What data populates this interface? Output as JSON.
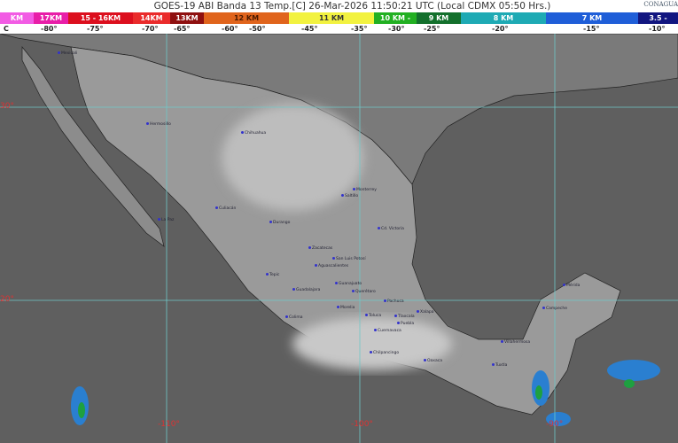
{
  "header": {
    "title": "GOES-19 ABI Banda 13 Temp.[C] 26-Mar-2026 11:50:21 UTC (Local CDMX  05:50 Hrs.)",
    "logo": "CONAGUA"
  },
  "colorbar": {
    "segments": [
      {
        "label": "KM",
        "color": "#f25ce4",
        "text": "#fff"
      },
      {
        "label": "17KM",
        "color": "#e81ea8",
        "text": "#fff"
      },
      {
        "label": "15 - 16KM",
        "color": "#dc0f1e",
        "text": "#fff"
      },
      {
        "label": "14KM",
        "color": "#ea2b2b",
        "text": "#fff"
      },
      {
        "label": "13KM",
        "color": "#8f1010",
        "text": "#fff"
      },
      {
        "label": "12 KM",
        "color": "#e0641c",
        "text": "#4a1a00"
      },
      {
        "label": "11 KM",
        "color": "#f2f240",
        "text": "#333"
      },
      {
        "label": "10 KM -",
        "color": "#22b022",
        "text": "#fff"
      },
      {
        "label": "9 KM",
        "color": "#13702c",
        "text": "#fff"
      },
      {
        "label": "8 KM",
        "color": "#1eaab4",
        "text": "#fff"
      },
      {
        "label": "7 KM",
        "color": "#1f5ed8",
        "text": "#fff"
      },
      {
        "label": "3.5 -",
        "color": "#121680",
        "text": "#fff"
      }
    ],
    "temps": [
      "C",
      "-80°",
      "-75°",
      "-70°",
      "-65°",
      "-60°",
      "-50°",
      "-45°",
      "-35°",
      "-30°",
      "-25°",
      "-20°",
      "-15°",
      "-10°"
    ]
  },
  "grid": {
    "lat": [
      "30°",
      "20°"
    ],
    "lon": [
      "-110°",
      "-100°",
      "-90°"
    ],
    "color": "#6fc8c8"
  },
  "cities": [
    "Mexicali",
    "Hermosillo",
    "Chihuahua",
    "La Paz",
    "Culiacán",
    "Durango",
    "Monterrey",
    "Saltillo",
    "Cd. Victoria",
    "Zacatecas",
    "San Luis Potosí",
    "Aguascalientes",
    "Tepic",
    "Guadalajara",
    "Guanajuato",
    "Querétaro",
    "Morelia",
    "Colima",
    "Toluca",
    "Pachuca",
    "Tlaxcala",
    "Puebla",
    "Cuernavaca",
    "Xalapa",
    "Chilpancingo",
    "Oaxaca",
    "Villahermosa",
    "Tuxtla",
    "Campeche",
    "Mérida"
  ]
}
